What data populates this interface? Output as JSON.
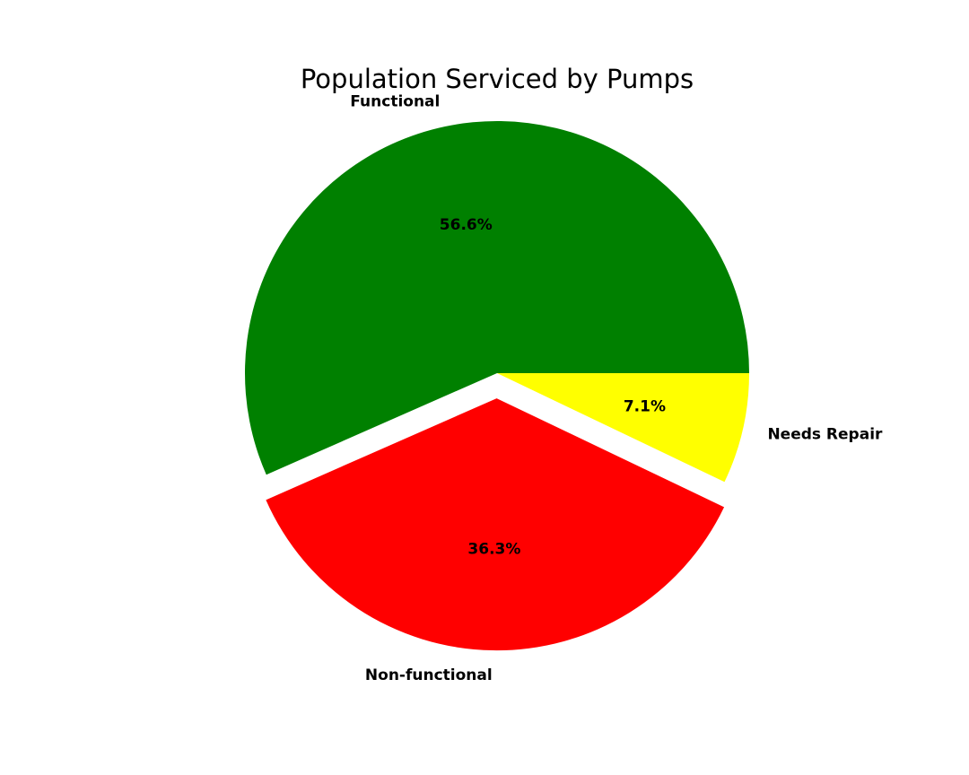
{
  "chart_data": {
    "type": "pie",
    "title": "Population Serviced by Pumps",
    "slices": [
      {
        "label": "Functional",
        "value": 56.6,
        "pct_label": "56.6%",
        "color": "#008000",
        "exploded": false
      },
      {
        "label": "Non-functional",
        "value": 36.3,
        "pct_label": "36.3%",
        "color": "#ff0000",
        "exploded": true
      },
      {
        "label": "Needs Repair",
        "value": 7.1,
        "pct_label": "7.1%",
        "color": "#ffff00",
        "exploded": false
      }
    ]
  }
}
